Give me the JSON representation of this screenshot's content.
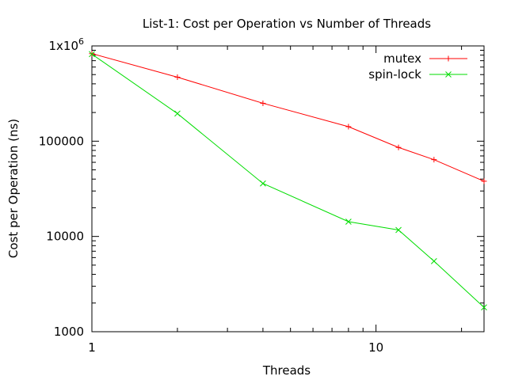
{
  "chart_data": {
    "type": "line",
    "title": "List-1: Cost per Operation vs Number of Threads",
    "xlabel": "Threads",
    "ylabel": "Cost per Operation (ns)",
    "x_scale": "log",
    "y_scale": "log",
    "xlim": [
      1,
      24
    ],
    "ylim": [
      1000,
      1000000
    ],
    "x_ticks": [
      {
        "value": 1,
        "label": "1"
      },
      {
        "value": 10,
        "label": "10"
      }
    ],
    "y_ticks": [
      {
        "value": 1000,
        "label": "1000"
      },
      {
        "value": 10000,
        "label": "10000"
      },
      {
        "value": 100000,
        "label": "100000"
      },
      {
        "value": 1000000,
        "label": "1x10",
        "superscript": "6"
      }
    ],
    "grid": false,
    "legend_position": "top-right",
    "series": [
      {
        "name": "mutex",
        "color": "#ff0000",
        "marker": "plus",
        "x": [
          1,
          2,
          4,
          8,
          12,
          16,
          24
        ],
        "y": [
          830000,
          470000,
          250000,
          142000,
          86000,
          64000,
          38000
        ]
      },
      {
        "name": "spin-lock",
        "color": "#00dd00",
        "marker": "cross",
        "x": [
          1,
          2,
          4,
          8,
          12,
          16,
          24
        ],
        "y": [
          820000,
          195000,
          36000,
          14300,
          11700,
          5500,
          1800
        ]
      }
    ]
  }
}
